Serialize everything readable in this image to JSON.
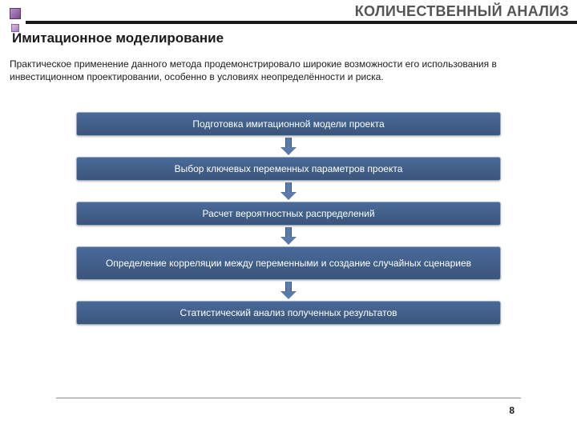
{
  "header": {
    "slide_title": "КОЛИЧЕСТВЕННЫЙ АНАЛИЗ",
    "section_title": "Имитационное моделирование"
  },
  "body_text": "Практическое применение данного метода продемонстрировало широкие возможности его использования в инвестиционном проектировании, особенно в условиях неопределённости и риска.",
  "flowchart": {
    "type": "flowchart",
    "direction": "vertical",
    "box_fill_gradient": [
      "#4a6a9a",
      "#3a557a"
    ],
    "box_border_color": "#9aaac0",
    "box_text_color": "#ffffff",
    "box_fontsize": 12,
    "arrow_color": "#5a7aa8",
    "nodes": [
      {
        "id": "n1",
        "label": "Подготовка имитационной модели проекта",
        "lines": 1
      },
      {
        "id": "n2",
        "label": "Выбор ключевых переменных параметров проекта",
        "lines": 1
      },
      {
        "id": "n3",
        "label": "Расчет вероятностных распределений",
        "lines": 1
      },
      {
        "id": "n4",
        "label": "Определение корреляции между переменными и создание случайных сценариев",
        "lines": 2
      },
      {
        "id": "n5",
        "label": "Статистический анализ полученных результатов",
        "lines": 1
      }
    ],
    "edges": [
      {
        "from": "n1",
        "to": "n2"
      },
      {
        "from": "n2",
        "to": "n3"
      },
      {
        "from": "n3",
        "to": "n4"
      },
      {
        "from": "n4",
        "to": "n5"
      }
    ]
  },
  "footer": {
    "page_number": "8"
  },
  "colors": {
    "background": "#ffffff",
    "text": "#1a1a1a",
    "title_gray": "#555555",
    "header_rule": "#1a1a1a",
    "footer_rule": "#888888",
    "bullet_main": "#7a4b8f",
    "bullet_sub": "#a57bbd"
  },
  "typography": {
    "family": "Arial",
    "slide_title_size": 18,
    "section_title_size": 17,
    "body_size": 12,
    "page_number_size": 12
  }
}
